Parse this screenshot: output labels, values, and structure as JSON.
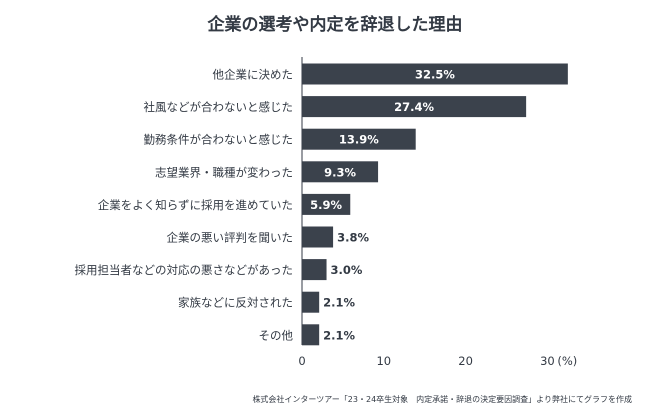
{
  "chart_data": {
    "type": "bar",
    "orientation": "horizontal",
    "title": "企業の選考や内定を辞退した理由",
    "categories": [
      "他企業に決めた",
      "社風などが合わないと感じた",
      "勤務条件が合わないと感じた",
      "志望業界・職種が変わった",
      "企業をよく知らずに採用を進めていた",
      "企業の悪い評判を聞いた",
      "採用担当者などの対応の悪さなどがあった",
      "家族などに反対された",
      "その他"
    ],
    "values": [
      32.5,
      27.4,
      13.9,
      9.3,
      5.9,
      3.8,
      3.0,
      2.1,
      2.1
    ],
    "value_labels": [
      "32.5%",
      "27.4%",
      "13.9%",
      "9.3%",
      "5.9%",
      "3.8%",
      "3.0%",
      "2.1%",
      "2.1%"
    ],
    "xlim": [
      0,
      33
    ],
    "xticks": [
      0,
      10,
      20,
      30
    ],
    "xtick_labels": [
      "0",
      "10",
      "20",
      "30"
    ],
    "xunit": "(%)",
    "grid": false,
    "source": "株式会社インターツアー「23・24卒生対象　内定承諾・辞退の決定要因調査」より弊社にてグラフを作成",
    "colors": {
      "bar": "#3b424c",
      "label_inside": "#ffffff",
      "label_outside": "#333a44",
      "axis": "#333a44"
    }
  }
}
